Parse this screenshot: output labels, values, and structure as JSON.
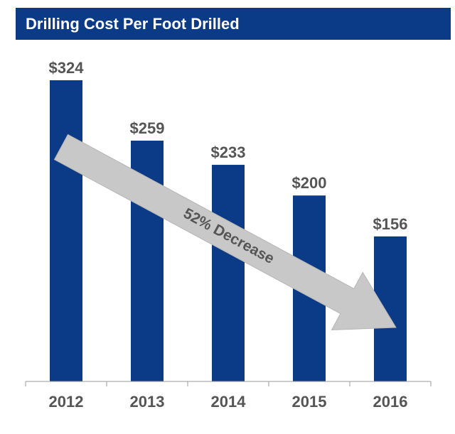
{
  "title": "Drilling Cost Per Foot Drilled",
  "colors": {
    "title_bg": "#0b3a86",
    "bar": "#0b3a86",
    "arrow": "#c8c8c8",
    "text": "#555555"
  },
  "annotation": {
    "text": "52% Decrease"
  },
  "chart_data": {
    "type": "bar",
    "title": "Drilling Cost Per Foot Drilled",
    "categories": [
      "2012",
      "2013",
      "2014",
      "2015",
      "2016"
    ],
    "values": [
      324,
      259,
      233,
      200,
      156
    ],
    "data_labels": [
      "$324",
      "$259",
      "$233",
      "$200",
      "$156"
    ],
    "xlabel": "",
    "ylabel": "",
    "ylim": [
      0,
      340
    ],
    "grid": false,
    "legend": "none",
    "annotations": [
      "52% Decrease"
    ]
  }
}
